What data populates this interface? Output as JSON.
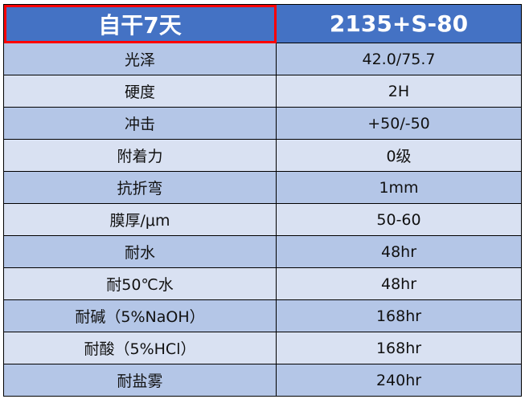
{
  "header": {
    "col1": "自干7天",
    "col2": "2135+S-80"
  },
  "colors": {
    "header_bg": "#4472C4",
    "row_dark": "#B4C6E7",
    "row_light": "#D9E1F2",
    "selection": "#FF0000"
  },
  "rows": [
    {
      "label": "光泽",
      "value": "42.0/75.7"
    },
    {
      "label": "硬度",
      "value": "2H"
    },
    {
      "label": "冲击",
      "value": "+50/-50"
    },
    {
      "label": "附着力",
      "value": "0级"
    },
    {
      "label": "抗折弯",
      "value": "1mm"
    },
    {
      "label": "膜厚/μm",
      "value": "50-60"
    },
    {
      "label": "耐水",
      "value": "48hr"
    },
    {
      "label": "耐50℃水",
      "value": "48hr"
    },
    {
      "label": "耐碱（5%NaOH）",
      "value": "168hr"
    },
    {
      "label": "耐酸（5%HCl）",
      "value": "168hr"
    },
    {
      "label": "耐盐雾",
      "value": "240hr"
    }
  ]
}
